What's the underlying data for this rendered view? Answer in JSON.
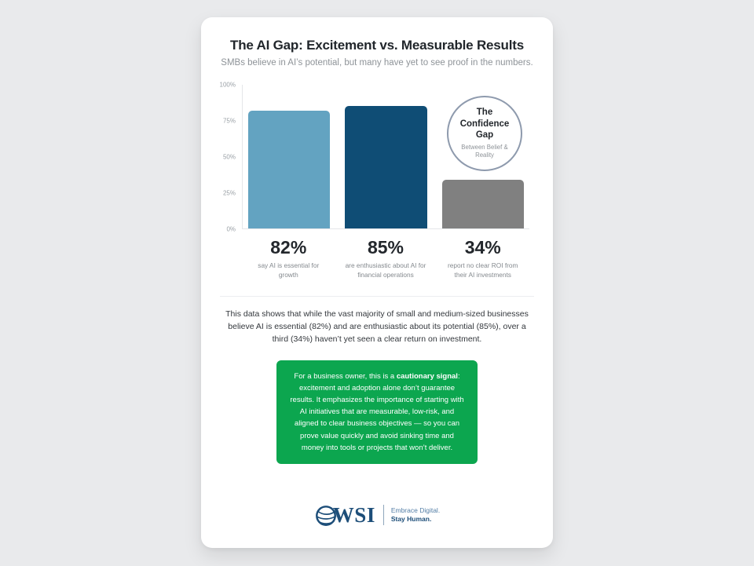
{
  "header": {
    "title": "The AI Gap: Excitement vs. Measurable Results",
    "subtitle": "SMBs believe in AI’s potential, but many have yet to see proof in the numbers."
  },
  "chart_data": {
    "type": "bar",
    "categories": [
      "say AI is essential for growth",
      "are enthusiastic about AI for financial operations",
      "report no clear ROI from their AI investments"
    ],
    "values": [
      82,
      85,
      34
    ],
    "value_labels": [
      "82%",
      "85%",
      "34%"
    ],
    "title": "The AI Gap: Excitement vs. Measurable Results",
    "xlabel": "",
    "ylabel": "",
    "ylim": [
      0,
      100
    ],
    "yticks": [
      "0%",
      "25%",
      "50%",
      "75%",
      "100%"
    ],
    "grid": false,
    "bar_colors": [
      "#63a3c1",
      "#0f4d75",
      "#808080"
    ],
    "annotation": {
      "title": "The Confidence Gap",
      "subtitle": "Between Belief & Reality"
    }
  },
  "stats": [
    {
      "value": "82%",
      "caption": "say AI is essential for growth"
    },
    {
      "value": "85%",
      "caption": "are enthusiastic about AI for financial operations"
    },
    {
      "value": "34%",
      "caption": "report no clear ROI from their AI investments"
    }
  ],
  "summary": {
    "text": "This data shows that while the vast majority of small and medium-sized businesses believe AI is essential (82%) and are enthusiastic about its potential (85%), over a third (34%) haven’t yet seen a clear return on investment."
  },
  "callout": {
    "text_before": "For a business owner, this is a ",
    "text_bold": "cautionary signal",
    "text_after": ": excitement and adoption alone don’t guarantee results. It emphasizes the importance of starting with AI initiatives that are measurable, low-risk, and aligned to clear business objectives — so you can prove value quickly and avoid sinking time and money into tools or projects that won’t deliver.",
    "background": "#0ca64f"
  },
  "logo": {
    "wordmark": "WSI",
    "tagline1": "Embrace Digital.",
    "tagline2": "Stay Human."
  },
  "colors": {
    "page_background": "#e9eaec",
    "card_background": "#ffffff",
    "title_text": "#21262b",
    "muted_text": "#8e9398",
    "annotation_border": "#8e9aad",
    "logo_navy": "#1d4e79",
    "logo_blue": "#537ea6"
  }
}
